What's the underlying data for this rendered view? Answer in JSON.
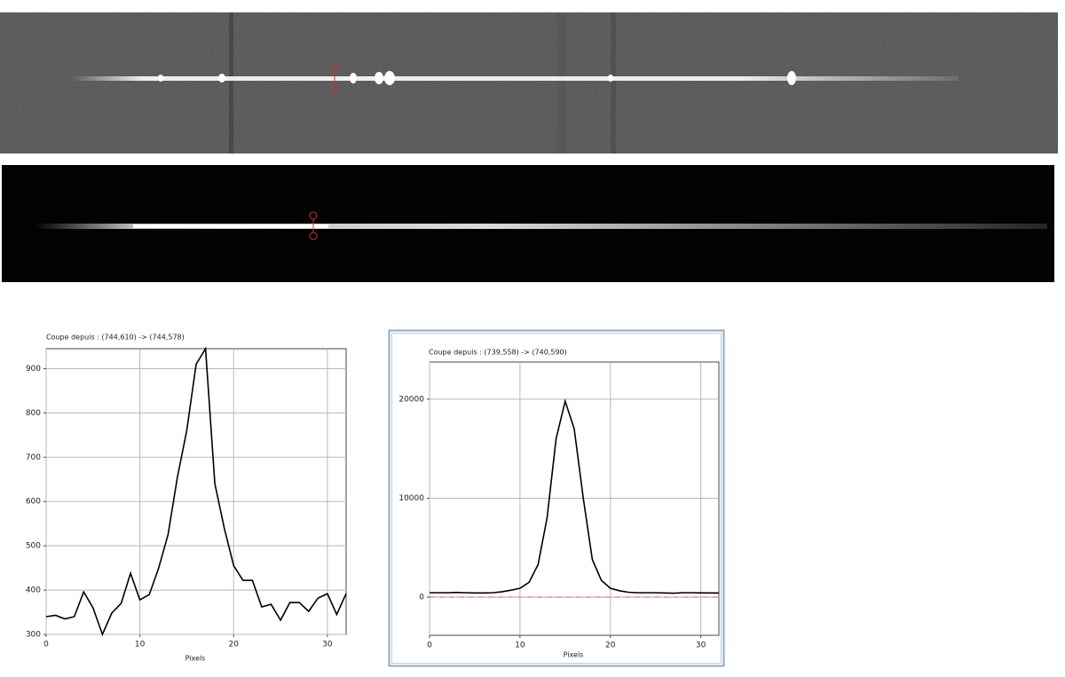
{
  "chart_data": [
    {
      "type": "line",
      "title": "Coupe depuis : (744,610) -> (744,578)",
      "x_label": "Pixels",
      "x": [
        0,
        1,
        2,
        3,
        4,
        5,
        6,
        7,
        8,
        9,
        10,
        11,
        12,
        13,
        14,
        15,
        16,
        17,
        18,
        19,
        20,
        21,
        22,
        23,
        24,
        25,
        26,
        27,
        28,
        29,
        30,
        31,
        32
      ],
      "values": [
        340,
        343,
        335,
        340,
        396,
        360,
        300,
        348,
        370,
        438,
        378,
        390,
        450,
        525,
        655,
        760,
        910,
        945,
        640,
        540,
        455,
        422,
        422,
        362,
        368,
        332,
        372,
        372,
        352,
        382,
        392,
        345,
        392
      ],
      "color": "#000000",
      "xlim": [
        0,
        32
      ],
      "xticks": [
        0,
        10,
        20,
        30
      ],
      "ylim": [
        300,
        945
      ],
      "yticks": [
        300,
        400,
        500,
        600,
        700,
        800,
        900
      ],
      "grid": true
    },
    {
      "type": "line",
      "title": "Coupe depuis : (739,558) -> (740,590)",
      "x_label": "Pixels",
      "x": [
        0,
        1,
        2,
        3,
        4,
        5,
        6,
        7,
        8,
        9,
        10,
        11,
        12,
        13,
        14,
        15,
        16,
        17,
        18,
        19,
        20,
        21,
        22,
        23,
        24,
        25,
        26,
        27,
        28,
        29,
        30,
        31,
        32
      ],
      "values": [
        450,
        450,
        450,
        480,
        450,
        420,
        420,
        450,
        550,
        700,
        900,
        1500,
        3300,
        8000,
        16000,
        19800,
        17000,
        10000,
        3800,
        1700,
        900,
        650,
        500,
        450,
        450,
        450,
        420,
        400,
        450,
        450,
        430,
        420,
        420
      ],
      "color": "#000000",
      "xlim": [
        0,
        32
      ],
      "xticks": [
        0,
        10,
        20,
        30
      ],
      "ylim": [
        -3850,
        23750
      ],
      "yticks": [
        0,
        10000,
        20000
      ],
      "grid": true,
      "reference_line": {
        "value": 0,
        "color": "#e05555"
      }
    }
  ]
}
